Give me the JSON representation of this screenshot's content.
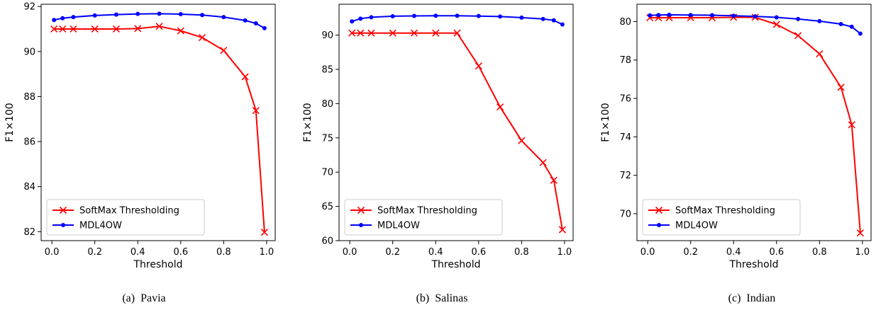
{
  "chart_data": [
    {
      "type": "line",
      "caption": "(a)  Pavia",
      "xlabel": "Threshold",
      "ylabel": "F1×100",
      "xlim": [
        -0.05,
        1.04
      ],
      "ylim": [
        81.6,
        92.1
      ],
      "xticks": [
        0.0,
        0.2,
        0.4,
        0.6,
        0.8,
        1.0
      ],
      "xtick_labels": [
        "0.0",
        "0.2",
        "0.4",
        "0.6",
        "0.8",
        "1.0"
      ],
      "yticks": [
        82,
        84,
        86,
        88,
        90,
        92
      ],
      "ytick_labels": [
        "82",
        "84",
        "86",
        "88",
        "90",
        "92"
      ],
      "legend_position": "lower-left",
      "series": [
        {
          "name": "SoftMax Thresholding",
          "color": "#ff0000",
          "marker": "x",
          "x": [
            0.01,
            0.05,
            0.1,
            0.2,
            0.3,
            0.4,
            0.5,
            0.6,
            0.7,
            0.8,
            0.9,
            0.95,
            0.99
          ],
          "y": [
            91.0,
            91.0,
            91.0,
            91.0,
            91.0,
            91.02,
            91.12,
            90.92,
            90.62,
            90.05,
            88.88,
            87.38,
            81.97
          ]
        },
        {
          "name": "MDL4OW",
          "color": "#0000ff",
          "marker": "o",
          "x": [
            0.01,
            0.05,
            0.1,
            0.2,
            0.3,
            0.4,
            0.5,
            0.6,
            0.7,
            0.8,
            0.9,
            0.95,
            0.99
          ],
          "y": [
            91.4,
            91.48,
            91.53,
            91.6,
            91.64,
            91.67,
            91.68,
            91.66,
            91.62,
            91.53,
            91.38,
            91.25,
            91.04
          ]
        }
      ]
    },
    {
      "type": "line",
      "caption": "(b)  Salinas",
      "xlabel": "Threshold",
      "ylabel": "F1×100",
      "xlim": [
        -0.05,
        1.04
      ],
      "ylim": [
        60.0,
        94.5
      ],
      "xticks": [
        0.0,
        0.2,
        0.4,
        0.6,
        0.8,
        1.0
      ],
      "xtick_labels": [
        "0.0",
        "0.2",
        "0.4",
        "0.6",
        "0.8",
        "1.0"
      ],
      "yticks": [
        60,
        65,
        70,
        75,
        80,
        85,
        90
      ],
      "ytick_labels": [
        "60",
        "65",
        "70",
        "75",
        "80",
        "85",
        "90"
      ],
      "legend_position": "lower-left",
      "series": [
        {
          "name": "SoftMax Thresholding",
          "color": "#ff0000",
          "marker": "x",
          "x": [
            0.01,
            0.05,
            0.1,
            0.2,
            0.3,
            0.4,
            0.5,
            0.6,
            0.7,
            0.8,
            0.9,
            0.95,
            0.99
          ],
          "y": [
            90.3,
            90.3,
            90.3,
            90.3,
            90.3,
            90.3,
            90.3,
            85.5,
            79.5,
            74.6,
            71.4,
            68.8,
            61.6
          ]
        },
        {
          "name": "MDL4OW",
          "color": "#0000ff",
          "marker": "o",
          "x": [
            0.01,
            0.05,
            0.1,
            0.2,
            0.3,
            0.4,
            0.5,
            0.6,
            0.7,
            0.8,
            0.9,
            0.95,
            0.99
          ],
          "y": [
            92.0,
            92.4,
            92.6,
            92.75,
            92.8,
            92.82,
            92.82,
            92.78,
            92.7,
            92.55,
            92.35,
            92.15,
            91.55
          ]
        }
      ]
    },
    {
      "type": "line",
      "caption": "(c)  Indian",
      "xlabel": "Threshold",
      "ylabel": "F1×100",
      "xlim": [
        -0.05,
        1.04
      ],
      "ylim": [
        68.6,
        80.9
      ],
      "xticks": [
        0.0,
        0.2,
        0.4,
        0.6,
        0.8,
        1.0
      ],
      "xtick_labels": [
        "0.0",
        "0.2",
        "0.4",
        "0.6",
        "0.8",
        "1.0"
      ],
      "yticks": [
        70,
        72,
        74,
        76,
        78,
        80
      ],
      "ytick_labels": [
        "70",
        "72",
        "74",
        "76",
        "78",
        "80"
      ],
      "legend_position": "lower-left",
      "series": [
        {
          "name": "SoftMax Thresholding",
          "color": "#ff0000",
          "marker": "x",
          "x": [
            0.01,
            0.05,
            0.1,
            0.2,
            0.3,
            0.4,
            0.5,
            0.6,
            0.7,
            0.8,
            0.9,
            0.95,
            0.99
          ],
          "y": [
            80.2,
            80.2,
            80.2,
            80.2,
            80.2,
            80.22,
            80.22,
            79.85,
            79.27,
            78.32,
            76.58,
            74.63,
            69.0
          ]
        },
        {
          "name": "MDL4OW",
          "color": "#0000ff",
          "marker": "o",
          "x": [
            0.01,
            0.05,
            0.1,
            0.2,
            0.3,
            0.4,
            0.5,
            0.6,
            0.7,
            0.8,
            0.9,
            0.95,
            0.99
          ],
          "y": [
            80.32,
            80.34,
            80.35,
            80.34,
            80.33,
            80.3,
            80.27,
            80.22,
            80.13,
            80.02,
            79.87,
            79.73,
            79.37
          ]
        }
      ]
    }
  ]
}
